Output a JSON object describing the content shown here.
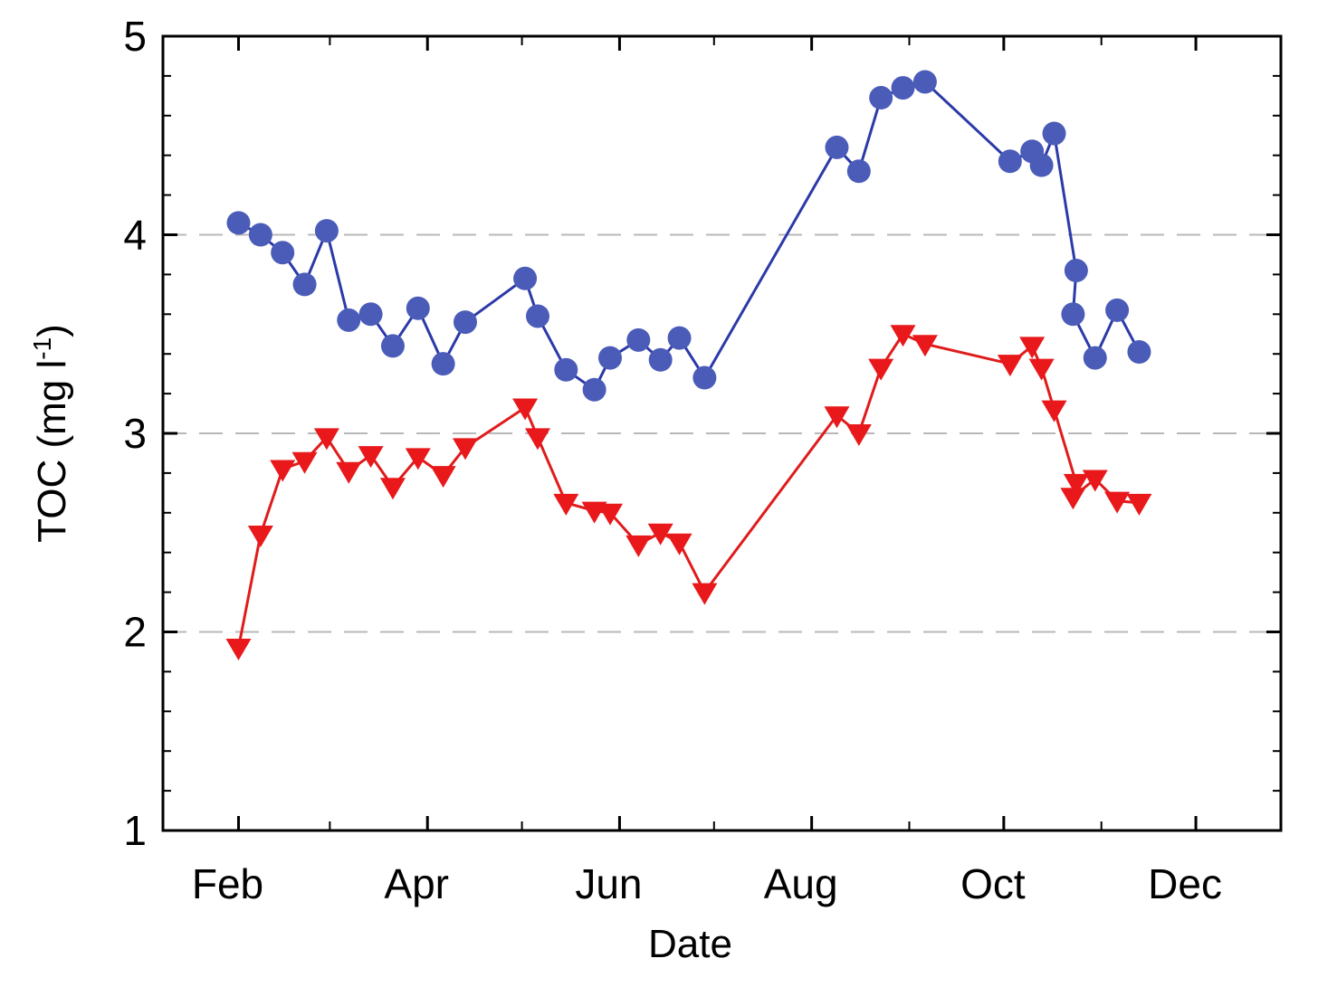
{
  "chart_data": {
    "type": "line",
    "title": "",
    "xlabel": "Date",
    "ylabel": "TOC (mg l",
    "ylabel_superscript": "-1",
    "ylabel_suffix": ")",
    "xlim": [
      "2000-01-08",
      "2000-12-28"
    ],
    "ylim": [
      1,
      5
    ],
    "y_ticks": [
      1,
      2,
      3,
      4,
      5
    ],
    "y_minor_ticks": [
      1.2,
      1.4,
      1.6,
      1.8,
      2.2,
      2.4,
      2.6,
      2.8,
      3.2,
      3.4,
      3.6,
      3.8,
      4.2,
      4.4,
      4.6,
      4.8
    ],
    "x_ticks": [
      {
        "date": "2000-02-01",
        "label": "Feb"
      },
      {
        "date": "2000-04-01",
        "label": "Apr"
      },
      {
        "date": "2000-06-01",
        "label": "Jun"
      },
      {
        "date": "2000-08-01",
        "label": "Aug"
      },
      {
        "date": "2000-10-01",
        "label": "Oct"
      },
      {
        "date": "2000-12-01",
        "label": "Dec"
      }
    ],
    "x_minor_ticks": [
      "2000-03-01",
      "2000-05-01",
      "2000-07-01",
      "2000-09-01",
      "2000-11-01"
    ],
    "grid": {
      "horizontal_dashed_at": [
        2,
        3,
        4
      ],
      "color": "#b8b8b8"
    },
    "series": [
      {
        "marker": "circle",
        "color": "#2b3aa8",
        "fill": "#4a5cb8",
        "points": [
          {
            "x": "2000-02-01",
            "y": 4.06
          },
          {
            "x": "2000-02-08",
            "y": 4.0
          },
          {
            "x": "2000-02-15",
            "y": 3.91
          },
          {
            "x": "2000-02-22",
            "y": 3.75
          },
          {
            "x": "2000-02-29",
            "y": 4.02
          },
          {
            "x": "2000-03-07",
            "y": 3.57
          },
          {
            "x": "2000-03-14",
            "y": 3.6
          },
          {
            "x": "2000-03-21",
            "y": 3.44
          },
          {
            "x": "2000-03-29",
            "y": 3.63
          },
          {
            "x": "2000-04-06",
            "y": 3.35
          },
          {
            "x": "2000-04-13",
            "y": 3.56
          },
          {
            "x": "2000-05-02",
            "y": 3.78
          },
          {
            "x": "2000-05-06",
            "y": 3.59
          },
          {
            "x": "2000-05-15",
            "y": 3.32
          },
          {
            "x": "2000-05-24",
            "y": 3.22
          },
          {
            "x": "2000-05-29",
            "y": 3.38
          },
          {
            "x": "2000-06-07",
            "y": 3.47
          },
          {
            "x": "2000-06-14",
            "y": 3.37
          },
          {
            "x": "2000-06-20",
            "y": 3.48
          },
          {
            "x": "2000-06-28",
            "y": 3.28
          },
          {
            "x": "2000-08-09",
            "y": 4.44
          },
          {
            "x": "2000-08-16",
            "y": 4.32
          },
          {
            "x": "2000-08-23",
            "y": 4.69
          },
          {
            "x": "2000-08-30",
            "y": 4.74
          },
          {
            "x": "2000-09-06",
            "y": 4.77
          },
          {
            "x": "2000-10-03",
            "y": 4.37
          },
          {
            "x": "2000-10-10",
            "y": 4.42
          },
          {
            "x": "2000-10-13",
            "y": 4.35
          },
          {
            "x": "2000-10-17",
            "y": 4.51
          },
          {
            "x": "2000-10-24",
            "y": 3.82
          },
          {
            "x": "2000-10-23",
            "y": 3.6
          },
          {
            "x": "2000-10-30",
            "y": 3.38
          },
          {
            "x": "2000-11-06",
            "y": 3.62
          },
          {
            "x": "2000-11-13",
            "y": 3.41
          }
        ]
      },
      {
        "marker": "triangle-down",
        "color": "#e01b1b",
        "fill": "#e8181b",
        "points": [
          {
            "x": "2000-02-01",
            "y": 1.92
          },
          {
            "x": "2000-02-08",
            "y": 2.49
          },
          {
            "x": "2000-02-15",
            "y": 2.82
          },
          {
            "x": "2000-02-22",
            "y": 2.86
          },
          {
            "x": "2000-02-29",
            "y": 2.98
          },
          {
            "x": "2000-03-07",
            "y": 2.81
          },
          {
            "x": "2000-03-14",
            "y": 2.89
          },
          {
            "x": "2000-03-21",
            "y": 2.73
          },
          {
            "x": "2000-03-29",
            "y": 2.88
          },
          {
            "x": "2000-04-06",
            "y": 2.79
          },
          {
            "x": "2000-04-13",
            "y": 2.93
          },
          {
            "x": "2000-05-02",
            "y": 3.13
          },
          {
            "x": "2000-05-06",
            "y": 2.98
          },
          {
            "x": "2000-05-15",
            "y": 2.65
          },
          {
            "x": "2000-05-24",
            "y": 2.61
          },
          {
            "x": "2000-05-29",
            "y": 2.6
          },
          {
            "x": "2000-06-07",
            "y": 2.44
          },
          {
            "x": "2000-06-14",
            "y": 2.5
          },
          {
            "x": "2000-06-20",
            "y": 2.45
          },
          {
            "x": "2000-06-28",
            "y": 2.2
          },
          {
            "x": "2000-08-09",
            "y": 3.09
          },
          {
            "x": "2000-08-16",
            "y": 3.0
          },
          {
            "x": "2000-08-23",
            "y": 3.33
          },
          {
            "x": "2000-08-30",
            "y": 3.5
          },
          {
            "x": "2000-09-06",
            "y": 3.45
          },
          {
            "x": "2000-10-03",
            "y": 3.35
          },
          {
            "x": "2000-10-10",
            "y": 3.44
          },
          {
            "x": "2000-10-13",
            "y": 3.33
          },
          {
            "x": "2000-10-17",
            "y": 3.12
          },
          {
            "x": "2000-10-24",
            "y": 2.75
          },
          {
            "x": "2000-10-23",
            "y": 2.68
          },
          {
            "x": "2000-10-30",
            "y": 2.77
          },
          {
            "x": "2000-11-06",
            "y": 2.66
          },
          {
            "x": "2000-11-13",
            "y": 2.65
          }
        ]
      }
    ]
  }
}
